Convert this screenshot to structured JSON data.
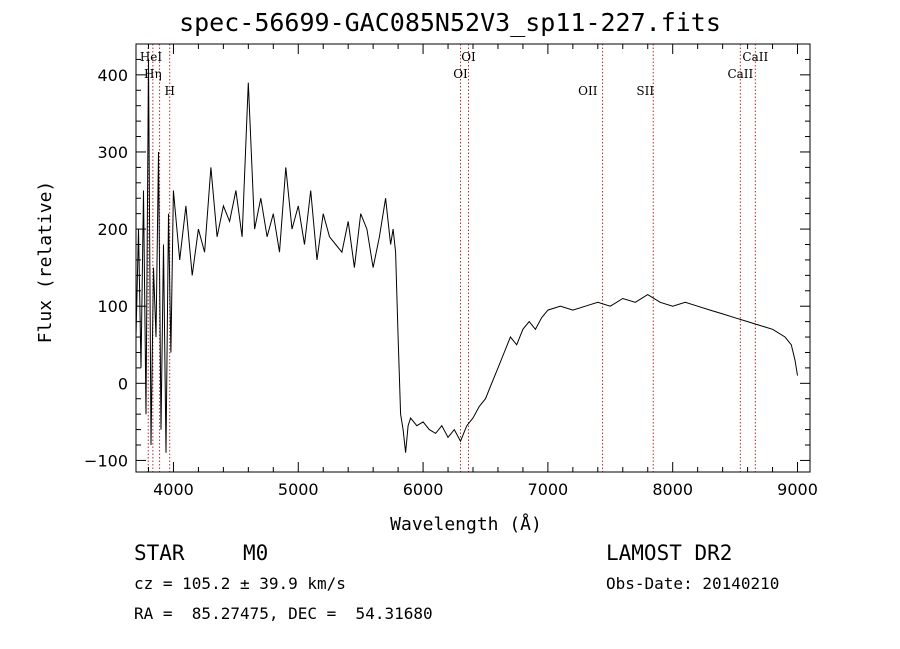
{
  "title": "spec-56699-GAC085N52V3_sp11-227.fits",
  "info": {
    "class": "STAR",
    "subclass": "M0",
    "survey": "LAMOST DR2",
    "cz": "cz = 105.2 ± 39.9 km/s",
    "obs_date": "Obs-Date: 20140210",
    "coords": "RA =  85.27475, DEC =  54.31680"
  },
  "chart_data": {
    "type": "line",
    "title": "spec-56699-GAC085N52V3_sp11-227.fits",
    "xlabel": "Wavelength (Å)",
    "ylabel": "Flux (relative)",
    "xlim": [
      3700,
      9100
    ],
    "ylim": [
      -115,
      440
    ],
    "xticks": [
      4000,
      5000,
      6000,
      7000,
      8000,
      9000
    ],
    "yticks": [
      -100,
      0,
      100,
      200,
      300,
      400
    ],
    "grid": false,
    "line_color": "#000000",
    "marker_color": "#b03030",
    "lines": [
      {
        "label": "HeI",
        "wavelength": 3820,
        "level": "top"
      },
      {
        "label": "Hη",
        "wavelength": 3835,
        "level": "second"
      },
      {
        "label": "H",
        "wavelength": 3970,
        "level": "third"
      },
      {
        "label": "OI",
        "wavelength": 6364,
        "level": "top"
      },
      {
        "label": "OI",
        "wavelength": 6300,
        "level": "second"
      },
      {
        "label": "OII",
        "wavelength": 7320,
        "level": "third"
      },
      {
        "label": "SII",
        "wavelength": 7780,
        "level": "third"
      },
      {
        "label": "CaII",
        "wavelength": 8662,
        "level": "top"
      },
      {
        "label": "CaII",
        "wavelength": 8542,
        "level": "second"
      }
    ],
    "marker_wavelengths": [
      3798,
      3835,
      3889,
      3970,
      6300,
      6364,
      7438,
      7844,
      8542,
      8662
    ],
    "series": [
      {
        "x": [
          3700,
          3720,
          3740,
          3760,
          3780,
          3800,
          3820,
          3840,
          3860,
          3880,
          3900,
          3920,
          3940,
          3960,
          3980,
          4000,
          4050,
          4100,
          4150,
          4200,
          4250,
          4300,
          4350,
          4400,
          4450,
          4500,
          4550,
          4600,
          4650,
          4700,
          4750,
          4800,
          4850,
          4900,
          4950,
          5000,
          5050,
          5100,
          5150,
          5200,
          5250,
          5300,
          5350,
          5400,
          5450,
          5500,
          5550,
          5600,
          5650,
          5700,
          5720,
          5740,
          5760,
          5780,
          5800,
          5820,
          5840,
          5860,
          5880,
          5900,
          5950,
          6000,
          6050,
          6100,
          6150,
          6200,
          6250,
          6300,
          6350,
          6400,
          6450,
          6500,
          6550,
          6600,
          6650,
          6700,
          6750,
          6800,
          6850,
          6900,
          6950,
          7000,
          7100,
          7200,
          7300,
          7400,
          7500,
          7600,
          7700,
          7800,
          7900,
          8000,
          8100,
          8200,
          8300,
          8400,
          8500,
          8600,
          8700,
          8800,
          8900,
          8950,
          8980,
          9000
        ],
        "y": [
          60,
          200,
          20,
          250,
          -40,
          420,
          -80,
          150,
          60,
          300,
          -60,
          180,
          -90,
          220,
          40,
          250,
          160,
          230,
          140,
          200,
          170,
          280,
          190,
          230,
          210,
          250,
          190,
          390,
          200,
          240,
          190,
          220,
          170,
          280,
          200,
          230,
          180,
          250,
          160,
          220,
          190,
          180,
          170,
          210,
          150,
          220,
          200,
          150,
          190,
          240,
          210,
          180,
          200,
          170,
          60,
          -40,
          -60,
          -90,
          -55,
          -45,
          -55,
          -50,
          -60,
          -65,
          -55,
          -70,
          -60,
          -75,
          -55,
          -45,
          -30,
          -20,
          0,
          20,
          40,
          60,
          50,
          70,
          80,
          70,
          85,
          95,
          100,
          95,
          100,
          105,
          100,
          110,
          105,
          115,
          105,
          100,
          105,
          100,
          95,
          90,
          85,
          80,
          75,
          70,
          60,
          50,
          30,
          10
        ]
      }
    ]
  }
}
